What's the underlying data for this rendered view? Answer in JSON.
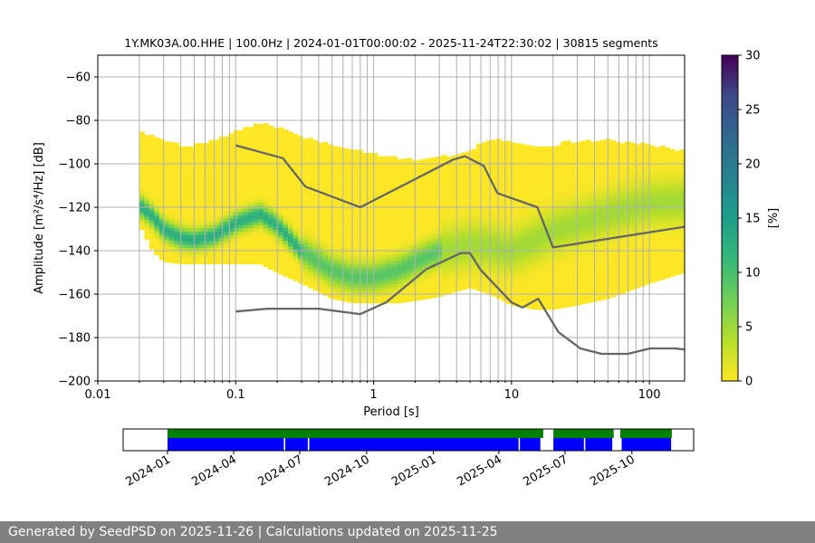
{
  "chart_data": [
    {
      "type": "heatmap",
      "title": "1Y.MK03A.00.HHE | 100.0Hz | 2024-01-01T00:00:02 - 2025-11-24T22:30:02 | 30815 segments",
      "xlabel": "Period [s]",
      "ylabel": "Amplitude [m²/s⁴/Hz] [dB]",
      "xscale": "log",
      "xlim": [
        0.01,
        180
      ],
      "ylim": [
        -200,
        -50
      ],
      "x_ticks": [
        "0.01",
        "0.1",
        "1",
        "10",
        "100"
      ],
      "y_ticks": [
        "−200",
        "−180",
        "−160",
        "−140",
        "−120",
        "−100",
        "−80",
        "−60"
      ],
      "colorbar": {
        "label": "[%]",
        "range": [
          0,
          30
        ],
        "ticks": [
          "0",
          "5",
          "10",
          "15",
          "20",
          "25",
          "30"
        ],
        "colormap": "viridis_r"
      },
      "grid": true,
      "psd_envelope": {
        "period": [
          0.02,
          0.025,
          0.03,
          0.04,
          0.05,
          0.07,
          0.1,
          0.15,
          0.2,
          0.3,
          0.5,
          0.7,
          1,
          1.5,
          2,
          3,
          5,
          7,
          10,
          15,
          20,
          30,
          50,
          100,
          180
        ],
        "upper": [
          -86,
          -88,
          -90,
          -92,
          -92,
          -90,
          -86,
          -82,
          -84,
          -88,
          -92,
          -94,
          -96,
          -98,
          -99,
          -98,
          -94,
          -90,
          -90,
          -92,
          -92,
          -90,
          -90,
          -92,
          -95
        ],
        "lower": [
          -128,
          -140,
          -145,
          -146,
          -146,
          -146,
          -146,
          -146,
          -150,
          -155,
          -162,
          -164,
          -164,
          -164,
          -163,
          -161,
          -157,
          -160,
          -165,
          -167,
          -167,
          -165,
          -162,
          -155,
          -150
        ]
      },
      "mode_curve": {
        "period": [
          0.02,
          0.025,
          0.03,
          0.04,
          0.05,
          0.07,
          0.1,
          0.15,
          0.2,
          0.3,
          0.5,
          0.7,
          1,
          1.5,
          2,
          3,
          5,
          7,
          10,
          20,
          50,
          100,
          180
        ],
        "db": [
          -119,
          -124,
          -130,
          -134,
          -135,
          -133,
          -127,
          -123,
          -128,
          -140,
          -149,
          -152,
          -152,
          -149,
          -145,
          -140,
          -137,
          -138,
          -140,
          -131,
          -123,
          -118,
          -117
        ]
      },
      "noise_models": {
        "nhnm": {
          "period": [
            0.1,
            0.22,
            0.32,
            0.8,
            3.8,
            4.6,
            6.3,
            7.9,
            15.4,
            20,
            180
          ],
          "db": [
            -91.5,
            -97.4,
            -110.5,
            -120,
            -98,
            -96.5,
            -101,
            -113.5,
            -120,
            -138.5,
            -129
          ]
        },
        "nlnm": {
          "period": [
            0.1,
            0.17,
            0.4,
            0.8,
            1.24,
            2.4,
            4.3,
            5,
            6,
            10,
            12,
            15.6,
            21.9,
            31.6,
            45,
            70,
            101,
            154,
            180
          ],
          "db": [
            -168,
            -166.7,
            -166.7,
            -169.2,
            -163.7,
            -148.6,
            -141.1,
            -141.1,
            -149,
            -163.8,
            -166.2,
            -162.1,
            -177.5,
            -185,
            -187.5,
            -187.5,
            -185,
            -185,
            -185.5
          ]
        }
      }
    },
    {
      "type": "timeline",
      "x_ticks": [
        "2024-01",
        "2024-04",
        "2024-07",
        "2024-10",
        "2025-01",
        "2025-04",
        "2025-07",
        "2025-10"
      ],
      "xlim": [
        "2023-11-01",
        "2025-12-25"
      ],
      "series": [
        {
          "name": "",
          "color": "#008000",
          "intervals": [
            [
              "2024-01-01",
              "2025-06-01"
            ],
            [
              "2025-06-15",
              "2025-09-06"
            ],
            [
              "2025-09-15",
              "2025-11-25"
            ]
          ]
        },
        {
          "name": "",
          "color": "#0000ff",
          "intervals": [
            [
              "2024-01-01",
              "2024-06-09"
            ],
            [
              "2024-06-11",
              "2024-07-12"
            ],
            [
              "2024-07-14",
              "2025-04-28"
            ],
            [
              "2025-04-30",
              "2025-05-28"
            ],
            [
              "2025-06-15",
              "2025-07-27"
            ],
            [
              "2025-07-29",
              "2025-09-04"
            ],
            [
              "2025-09-17",
              "2025-11-24"
            ]
          ]
        }
      ]
    }
  ],
  "footer": {
    "text": "Generated by SeedPSD on 2025-11-26 | Calculations updated on 2025-11-25"
  },
  "colors": {
    "nm_line": "#666666",
    "grid": "#b0b0b0"
  }
}
